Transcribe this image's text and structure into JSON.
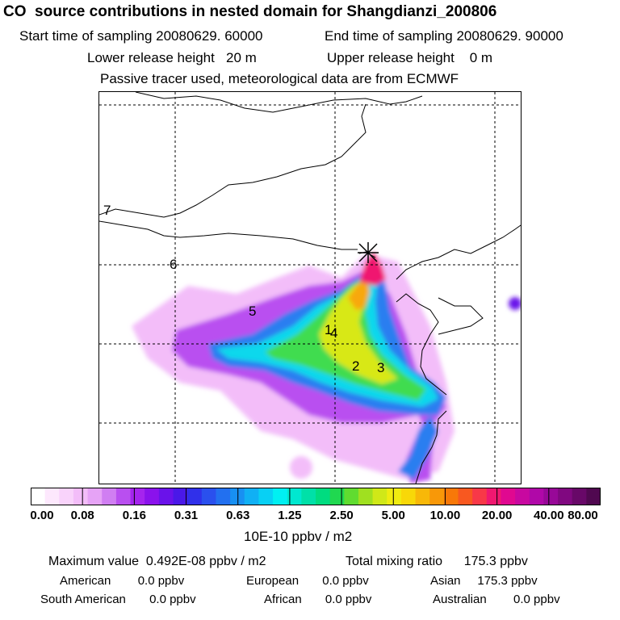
{
  "header": {
    "title": "CO  source contributions in nested domain for Shangdianzi_200806",
    "start_label": "Start time of sampling 20080629. 60000",
    "end_label": "End time of sampling 20080629. 90000",
    "lower_label": "Lower release height   20 m",
    "upper_label": "Upper release height    0 m",
    "tracer_label": "Passive tracer used, meteorological data are from ECMWF"
  },
  "map": {
    "station_marker": "star-marker",
    "labels": [
      "7",
      "6",
      "5",
      "1",
      "4",
      "2",
      "3"
    ]
  },
  "scale": {
    "ticks": [
      "0.00",
      "0.08",
      "0.16",
      "0.31",
      "0.63",
      "1.25",
      "2.50",
      "5.00",
      "10.00",
      "20.00",
      "40.00",
      "80.00"
    ],
    "colors": [
      "#ffffff",
      "#fde8fd",
      "#f9d3fb",
      "#f3bdf9",
      "#e6a3f6",
      "#d07ef2",
      "#b94ff0",
      "#a524ee",
      "#8a12ec",
      "#6a12ea",
      "#4a18e8",
      "#3030ea",
      "#2a50ee",
      "#2270f0",
      "#1890f2",
      "#10b0f4",
      "#08d0f4",
      "#00f0f2",
      "#00e8d0",
      "#00e0a8",
      "#00dc80",
      "#20d850",
      "#60dc30",
      "#a0e020",
      "#d0e818",
      "#f0ec10",
      "#f8d808",
      "#f8b808",
      "#f89808",
      "#f87808",
      "#f85820",
      "#f83848",
      "#f01870",
      "#e00890",
      "#c808a0",
      "#b008a8",
      "#980898",
      "#800880",
      "#680868",
      "#500850"
    ],
    "units": "10E-10 ppbv / m2"
  },
  "stats": {
    "max_label": "Maximum value  0.492E-08 ppbv / m2",
    "total_label": "Total mixing ratio      175.3 ppbv",
    "american": "American        0.0 ppbv",
    "european": "European       0.0 ppbv",
    "asian": "Asian     175.3 ppbv",
    "south_american": "South American       0.0 ppbv",
    "african": "African       0.0 ppbv",
    "australian": "Australian        0.0 ppbv"
  }
}
